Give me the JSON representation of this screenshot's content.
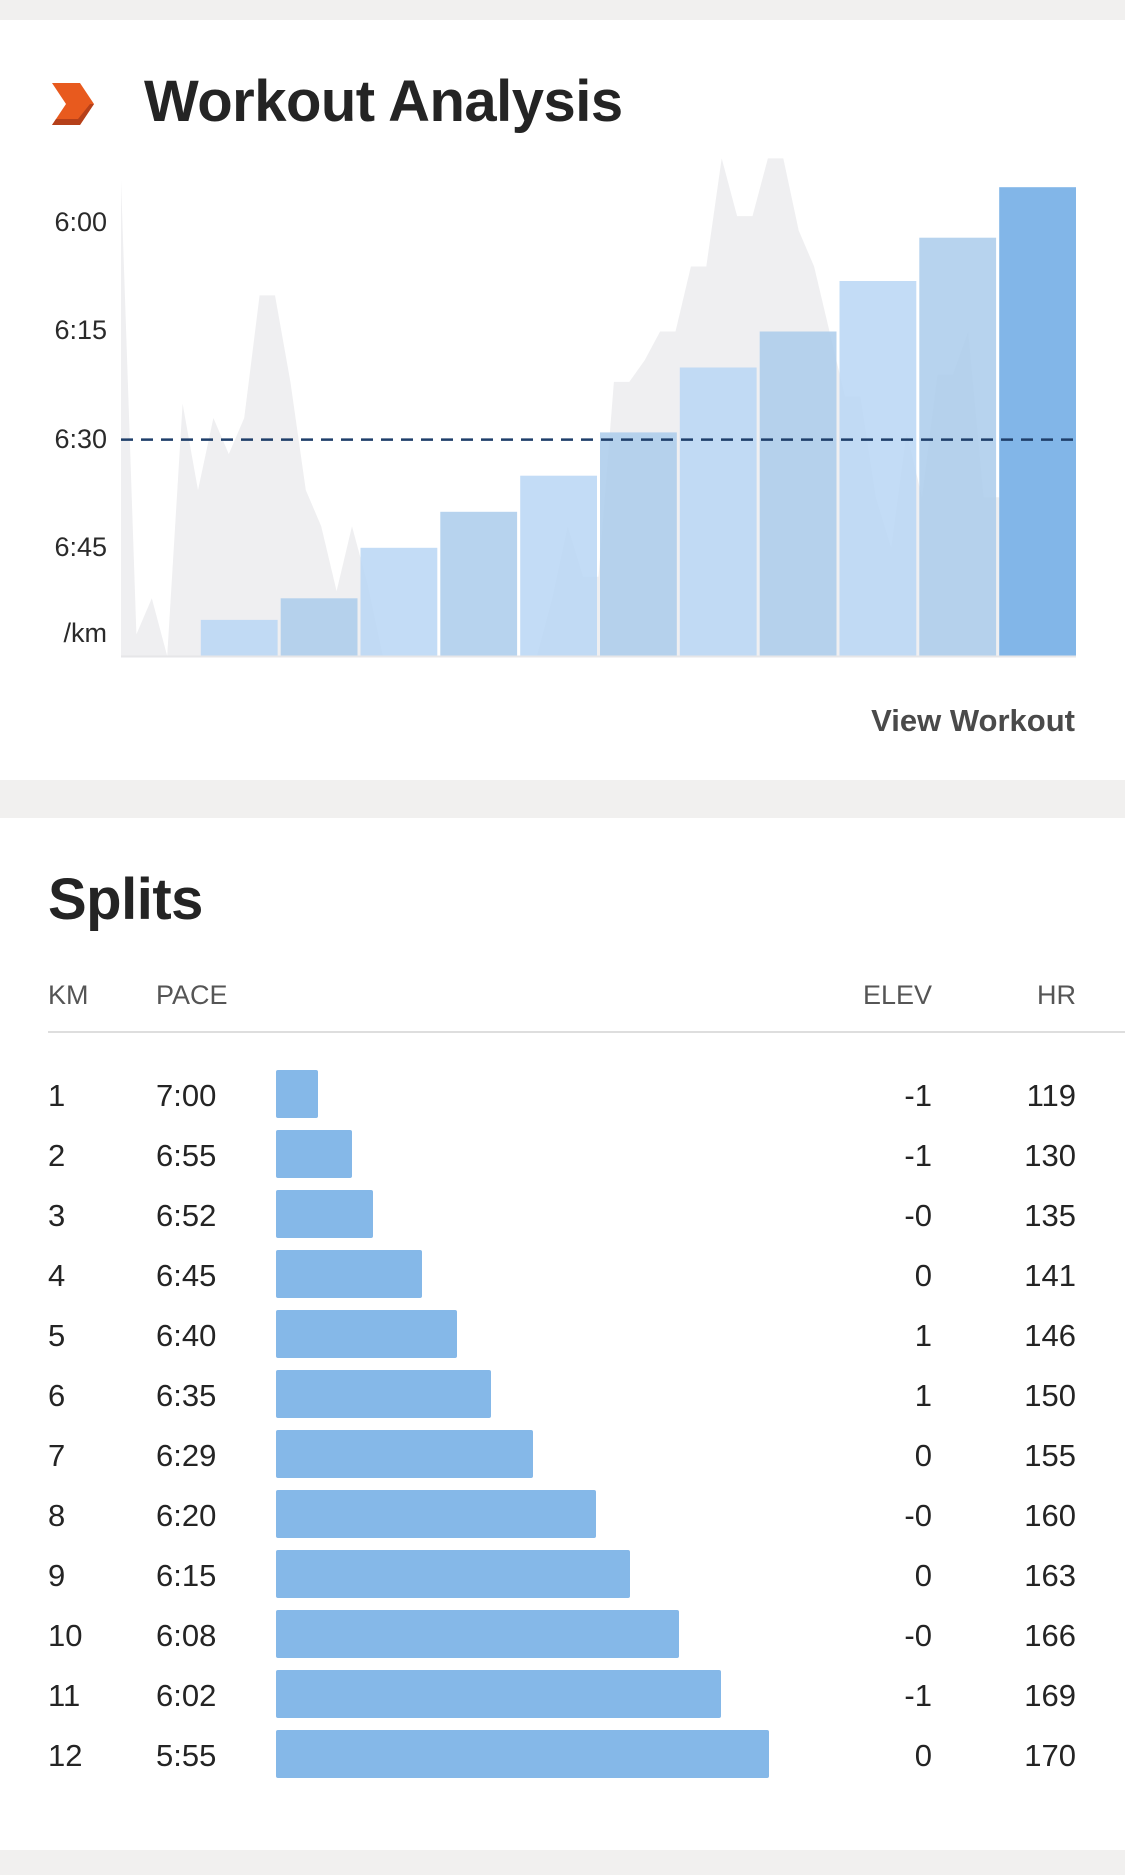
{
  "analysis": {
    "title": "Workout Analysis",
    "logo_icon": "chevron-logo-icon",
    "accent_color": "#e85a1e",
    "y_axis": {
      "labels": [
        "6:00",
        "6:15",
        "6:30",
        "6:45",
        "/km"
      ]
    },
    "view_workout_label": "View Workout"
  },
  "chart_data": {
    "type": "bar",
    "description_units": "pace min/km per split",
    "categories": [
      "1",
      "2",
      "3",
      "4",
      "5",
      "6",
      "7",
      "8",
      "9",
      "10",
      "11",
      "12"
    ],
    "values": [
      "7:00",
      "6:55",
      "6:52",
      "6:45",
      "6:40",
      "6:35",
      "6:29",
      "6:20",
      "6:15",
      "6:08",
      "6:02",
      "5:55"
    ],
    "values_seconds": [
      420,
      415,
      412,
      405,
      400,
      395,
      389,
      380,
      375,
      368,
      362,
      355
    ],
    "average_line": "6:30",
    "average_line_seconds": 390,
    "y_ticks": [
      "6:00",
      "6:15",
      "6:30",
      "6:45"
    ],
    "y_ticks_seconds": [
      360,
      375,
      390,
      405
    ],
    "y_range_seconds": [
      354,
      420
    ],
    "highlighted_split": "12",
    "colors": {
      "bar": "#aacbeb",
      "bar_alt": "#b8d6f4",
      "bar_highlight": "#82b6e8",
      "pace_area": "#efeff1",
      "average_line": "#1f3f6a"
    },
    "pace_trace_seconds": [
      354,
      417,
      412,
      430,
      385,
      397,
      387,
      392,
      387,
      370,
      370,
      382,
      397,
      402,
      411,
      402,
      410,
      444,
      460,
      462,
      448,
      460,
      444,
      460,
      445,
      445,
      429,
      429,
      412,
      402,
      409,
      409,
      382,
      382,
      379,
      375,
      375,
      366,
      366,
      351,
      359,
      359,
      351,
      351,
      361,
      366,
      375,
      384,
      384,
      398,
      405,
      389,
      398,
      381,
      381,
      375,
      398,
      398,
      405,
      460,
      445,
      460,
      445
    ]
  },
  "splits": {
    "title": "Splits",
    "headers": {
      "km": "KM",
      "pace": "PACE",
      "elev": "ELEV",
      "hr": "HR"
    },
    "bar_color": "#85b8e8",
    "rows": [
      {
        "km": "1",
        "pace": "7:00",
        "pace_seconds": 420,
        "elev": "-1",
        "hr": "119"
      },
      {
        "km": "2",
        "pace": "6:55",
        "pace_seconds": 415,
        "elev": "-1",
        "hr": "130"
      },
      {
        "km": "3",
        "pace": "6:52",
        "pace_seconds": 412,
        "elev": "-0",
        "hr": "135"
      },
      {
        "km": "4",
        "pace": "6:45",
        "pace_seconds": 405,
        "elev": "0",
        "hr": "141"
      },
      {
        "km": "5",
        "pace": "6:40",
        "pace_seconds": 400,
        "elev": "1",
        "hr": "146"
      },
      {
        "km": "6",
        "pace": "6:35",
        "pace_seconds": 395,
        "elev": "1",
        "hr": "150"
      },
      {
        "km": "7",
        "pace": "6:29",
        "pace_seconds": 389,
        "elev": "0",
        "hr": "155"
      },
      {
        "km": "8",
        "pace": "6:20",
        "pace_seconds": 380,
        "elev": "-0",
        "hr": "160"
      },
      {
        "km": "9",
        "pace": "6:15",
        "pace_seconds": 375,
        "elev": "0",
        "hr": "163"
      },
      {
        "km": "10",
        "pace": "6:08",
        "pace_seconds": 368,
        "elev": "-0",
        "hr": "166"
      },
      {
        "km": "11",
        "pace": "6:02",
        "pace_seconds": 362,
        "elev": "-1",
        "hr": "169"
      },
      {
        "km": "12",
        "pace": "5:55",
        "pace_seconds": 355,
        "elev": "0",
        "hr": "170"
      }
    ]
  }
}
